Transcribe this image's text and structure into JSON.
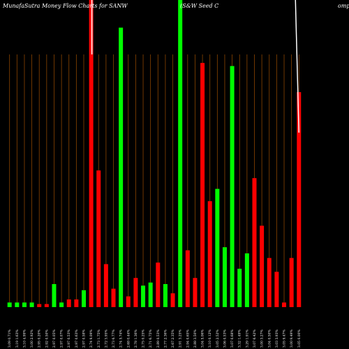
{
  "title": {
    "left": "MunafaSutra  Money Flow  Charts for SANW",
    "middle": "(S&W Seed C",
    "right": "omp"
  },
  "chart_data": {
    "type": "bar",
    "title": "MunafaSutra  Money Flow  Charts for SANW",
    "xlabel": "",
    "ylabel": "",
    "ylim": [
      0,
      100
    ],
    "grid": true,
    "legend": "none",
    "colors": {
      "up": "#00ff00",
      "down": "#ff0000",
      "grid": "#8b4500",
      "price_line": "#ffffff",
      "background": "#000000"
    },
    "categories": [
      "3.09  0.71%",
      "3.19  1.63%",
      "3.10  4.99%",
      "3.00  2.92%",
      "2.95  0.20%",
      "2.92  0.50%",
      "2.97  0.05%",
      "2.97  0.07%",
      "2.97  0.53%",
      "2.97  0.63%",
      "2.97  0.58%",
      "2.74  9.09%",
      "2.73  1.75%",
      "2.72  3.95%",
      "2.73  6.77%",
      "2.74  5.74%",
      "2.68  0.44%",
      "2.78  1.36%",
      "2.75  0.25%",
      "2.71  6.75%",
      "2.89  0.53%",
      "2.77  2.36%",
      "2.67  2.35%",
      "2.91  3.25%",
      "2.94  0.65%",
      "2.88  3.50%",
      "3.04  5.06%",
      "3.10  0.12%",
      "3.05  2.52%",
      "3.06  0.53%",
      "3.07  0.68%",
      "3.32  1.49%",
      "3.29  1.91%",
      "3.07  6.42%",
      "3.00  3.27%",
      "3.04  0.50%",
      "3.03  3.93%",
      "3.05  9.47%",
      "3.00  9.49%",
      "3.05  0.00%"
    ],
    "series": [
      {
        "values": [
          1.5,
          1.5,
          1.5,
          1.5,
          1,
          1,
          7.5,
          1.5,
          2.5,
          2.5,
          5.5,
          100,
          44.5,
          14,
          6,
          91,
          3.5,
          9.5,
          7,
          8,
          14.5,
          7.5,
          4.5,
          100,
          18.5,
          9.5,
          79.5,
          34.5,
          38.5,
          19.5,
          78.5,
          12.5,
          17.5,
          42,
          26.5,
          16,
          11.5,
          1.5,
          16,
          70
        ],
        "directions": [
          "up",
          "up",
          "up",
          "up",
          "down",
          "down",
          "up",
          "up",
          "down",
          "down",
          "up",
          "down",
          "down",
          "down",
          "down",
          "up",
          "down",
          "down",
          "up",
          "up",
          "down",
          "up",
          "down",
          "up",
          "down",
          "down",
          "down",
          "down",
          "up",
          "up",
          "up",
          "up",
          "up",
          "down",
          "down",
          "down",
          "down",
          "down",
          "down",
          "down"
        ]
      }
    ],
    "price_line": {
      "segments": [
        {
          "from_bar": 11,
          "y_top": 100,
          "y_bottom": 100
        },
        {
          "from_bar": 39,
          "y_top": 100,
          "y_bottom": 80
        }
      ]
    }
  }
}
